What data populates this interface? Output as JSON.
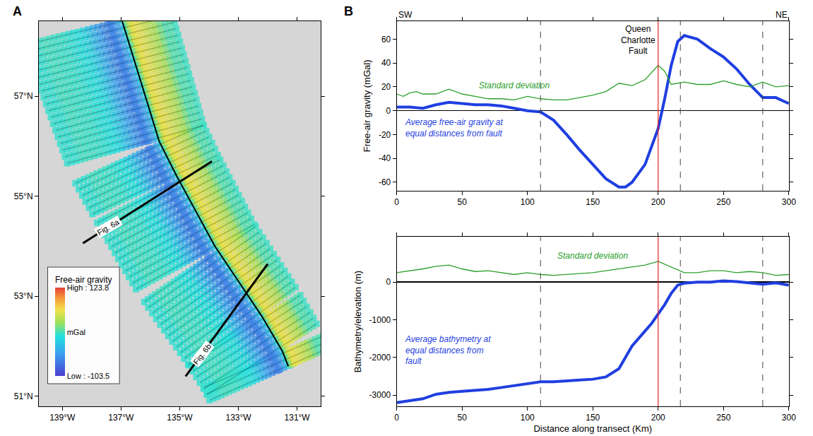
{
  "chart_data": [
    {
      "type": "map",
      "panel_label": "A",
      "xlim": [
        -139.8,
        -130.2
      ],
      "ylim": [
        50.8,
        58.5
      ],
      "xticks": [
        {
          "value": -139,
          "label": "139°W"
        },
        {
          "value": -137,
          "label": "137°W"
        },
        {
          "value": -135,
          "label": "135°W"
        },
        {
          "value": -133,
          "label": "133°W"
        },
        {
          "value": -131,
          "label": "131°W"
        }
      ],
      "yticks": [
        {
          "value": 51,
          "label": "51°N"
        },
        {
          "value": 53,
          "label": "53°N"
        },
        {
          "value": 55,
          "label": "55°N"
        },
        {
          "value": 57,
          "label": "57°N"
        }
      ],
      "fault": {
        "lon": [
          -136.96,
          -135.7,
          -135.1,
          -133.8,
          -133.0,
          -132.2,
          -131.5,
          -131.3
        ],
        "lat": [
          58.5,
          56.1,
          55.4,
          54.0,
          53.3,
          52.6,
          51.9,
          51.6
        ]
      },
      "profiles": [
        {
          "name": "Fig. 6a",
          "lon": [
            -138.3,
            -133.9
          ],
          "lat": [
            54.06,
            55.7
          ]
        },
        {
          "name": "Fig. 6b",
          "lon": [
            -134.8,
            -132.0
          ],
          "lat": [
            51.4,
            53.65
          ]
        }
      ],
      "colorbar": {
        "title": "Free-air gravity",
        "range": [
          -103.5,
          123.8
        ],
        "ticks": [
          {
            "value": 123.8,
            "label": "High : 123.8"
          },
          {
            "value": 10.15,
            "label": "mGal"
          },
          {
            "value": -103.5,
            "label": "Low : -103.5"
          }
        ]
      }
    },
    {
      "type": "line",
      "panel_label": "B",
      "ylabel": "Free-air gravity (mGal)",
      "left_label": "SW",
      "right_label": "NE",
      "fault_label": "Queen Charlotte Fault",
      "fault_x": 200,
      "vlines": [
        110,
        217,
        280
      ],
      "xlim": [
        0,
        300
      ],
      "xticks": [
        0,
        50,
        100,
        150,
        200,
        250,
        300
      ],
      "ylim": [
        -67,
        75
      ],
      "yticks": [
        -60,
        -40,
        -20,
        0,
        20,
        40,
        60
      ],
      "series": [
        {
          "name": "Average free-air gravity at equal distances from fault",
          "color": "#1f3fe0",
          "x": [
            0,
            10,
            20,
            30,
            40,
            50,
            60,
            70,
            80,
            90,
            100,
            110,
            120,
            130,
            140,
            150,
            160,
            170,
            175,
            180,
            190,
            200,
            205,
            210,
            215,
            220,
            230,
            240,
            250,
            260,
            270,
            280,
            290,
            300
          ],
          "values": [
            3,
            3,
            2,
            5,
            7,
            6,
            5,
            5,
            4,
            2,
            0,
            -1,
            -8,
            -20,
            -33,
            -45,
            -57,
            -64,
            -64,
            -60,
            -45,
            -15,
            10,
            38,
            58,
            63,
            60,
            52,
            45,
            35,
            22,
            11,
            11,
            6
          ]
        },
        {
          "name": "Standard deviation",
          "color": "#2ca02c",
          "x": [
            0,
            5,
            10,
            15,
            20,
            30,
            40,
            50,
            60,
            70,
            80,
            90,
            100,
            110,
            120,
            130,
            140,
            150,
            160,
            170,
            180,
            190,
            200,
            205,
            210,
            220,
            230,
            240,
            250,
            260,
            270,
            280,
            290,
            300
          ],
          "values": [
            14,
            12,
            15,
            16,
            14,
            14,
            18,
            14,
            12,
            10,
            10,
            9,
            12,
            10,
            9,
            9,
            11,
            13,
            16,
            23,
            21,
            26,
            38,
            33,
            22,
            24,
            22,
            22,
            25,
            22,
            20,
            24,
            20,
            21
          ]
        }
      ]
    },
    {
      "type": "line",
      "ylabel": "Bathymetry/elevation (m)",
      "xlabel": "Distance along transect (Km)",
      "fault_x": 200,
      "vlines": [
        110,
        217,
        280
      ],
      "xlim": [
        0,
        300
      ],
      "xticks": [
        0,
        50,
        100,
        150,
        200,
        250,
        300
      ],
      "ylim": [
        -3300,
        1200
      ],
      "yticks": [
        -3000,
        -2000,
        -1000,
        0
      ],
      "series": [
        {
          "name": "Average bathymetry at equal distances from fault",
          "color": "#1f3fe0",
          "x": [
            0,
            10,
            20,
            30,
            40,
            50,
            60,
            70,
            80,
            90,
            100,
            110,
            120,
            130,
            140,
            150,
            160,
            170,
            180,
            190,
            195,
            200,
            205,
            210,
            215,
            220,
            230,
            240,
            250,
            260,
            270,
            280,
            290,
            300
          ],
          "values": [
            -3200,
            -3150,
            -3100,
            -2980,
            -2930,
            -2900,
            -2880,
            -2850,
            -2800,
            -2750,
            -2700,
            -2650,
            -2650,
            -2620,
            -2600,
            -2580,
            -2520,
            -2300,
            -1700,
            -1300,
            -1100,
            -850,
            -600,
            -300,
            -80,
            -30,
            0,
            0,
            30,
            10,
            -20,
            -60,
            -20,
            -80
          ]
        },
        {
          "name": "Standard deviation",
          "color": "#2ca02c",
          "x": [
            0,
            10,
            20,
            30,
            40,
            50,
            60,
            70,
            80,
            90,
            100,
            110,
            120,
            130,
            140,
            150,
            160,
            170,
            180,
            190,
            200,
            210,
            220,
            230,
            240,
            250,
            260,
            270,
            280,
            290,
            300
          ],
          "values": [
            250,
            300,
            350,
            420,
            450,
            350,
            280,
            300,
            250,
            200,
            250,
            200,
            180,
            200,
            220,
            250,
            300,
            350,
            400,
            450,
            550,
            400,
            250,
            250,
            300,
            300,
            250,
            280,
            250,
            180,
            200
          ]
        }
      ]
    }
  ]
}
